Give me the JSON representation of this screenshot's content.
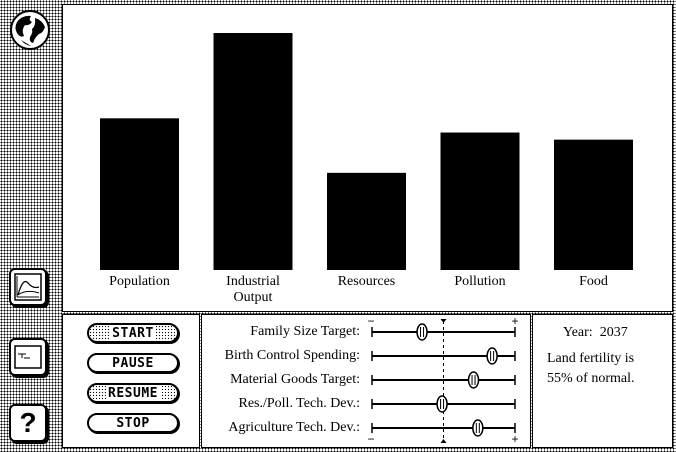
{
  "sidebar": {
    "globe_icon": "globe-icon",
    "graph_icon": "line-graph-icon",
    "list_icon": "list-icon",
    "help_label": "?"
  },
  "chart_data": {
    "type": "bar",
    "categories": [
      "Population",
      "Industrial\nOutput",
      "Resources",
      "Pollution",
      "Food"
    ],
    "values": [
      64,
      100,
      41,
      58,
      55
    ],
    "bar_color": "#000000"
  },
  "controls": {
    "start": "START",
    "pause": "PAUSE",
    "resume": "RESUME",
    "stop": "STOP"
  },
  "sliders": {
    "minus_label": "−",
    "plus_label": "+",
    "items": [
      {
        "label": "Family Size Target:",
        "value": 0.35
      },
      {
        "label": "Birth Control Spending:",
        "value": 0.84
      },
      {
        "label": "Material Goods Target:",
        "value": 0.71
      },
      {
        "label": "Res./Poll. Tech. Dev.:",
        "value": 0.49
      },
      {
        "label": "Agriculture Tech. Dev.:",
        "value": 0.74
      }
    ]
  },
  "info": {
    "year_label": "Year:",
    "year": "2037",
    "status_line1": "Land fertility is",
    "status_line2": "55% of normal."
  }
}
